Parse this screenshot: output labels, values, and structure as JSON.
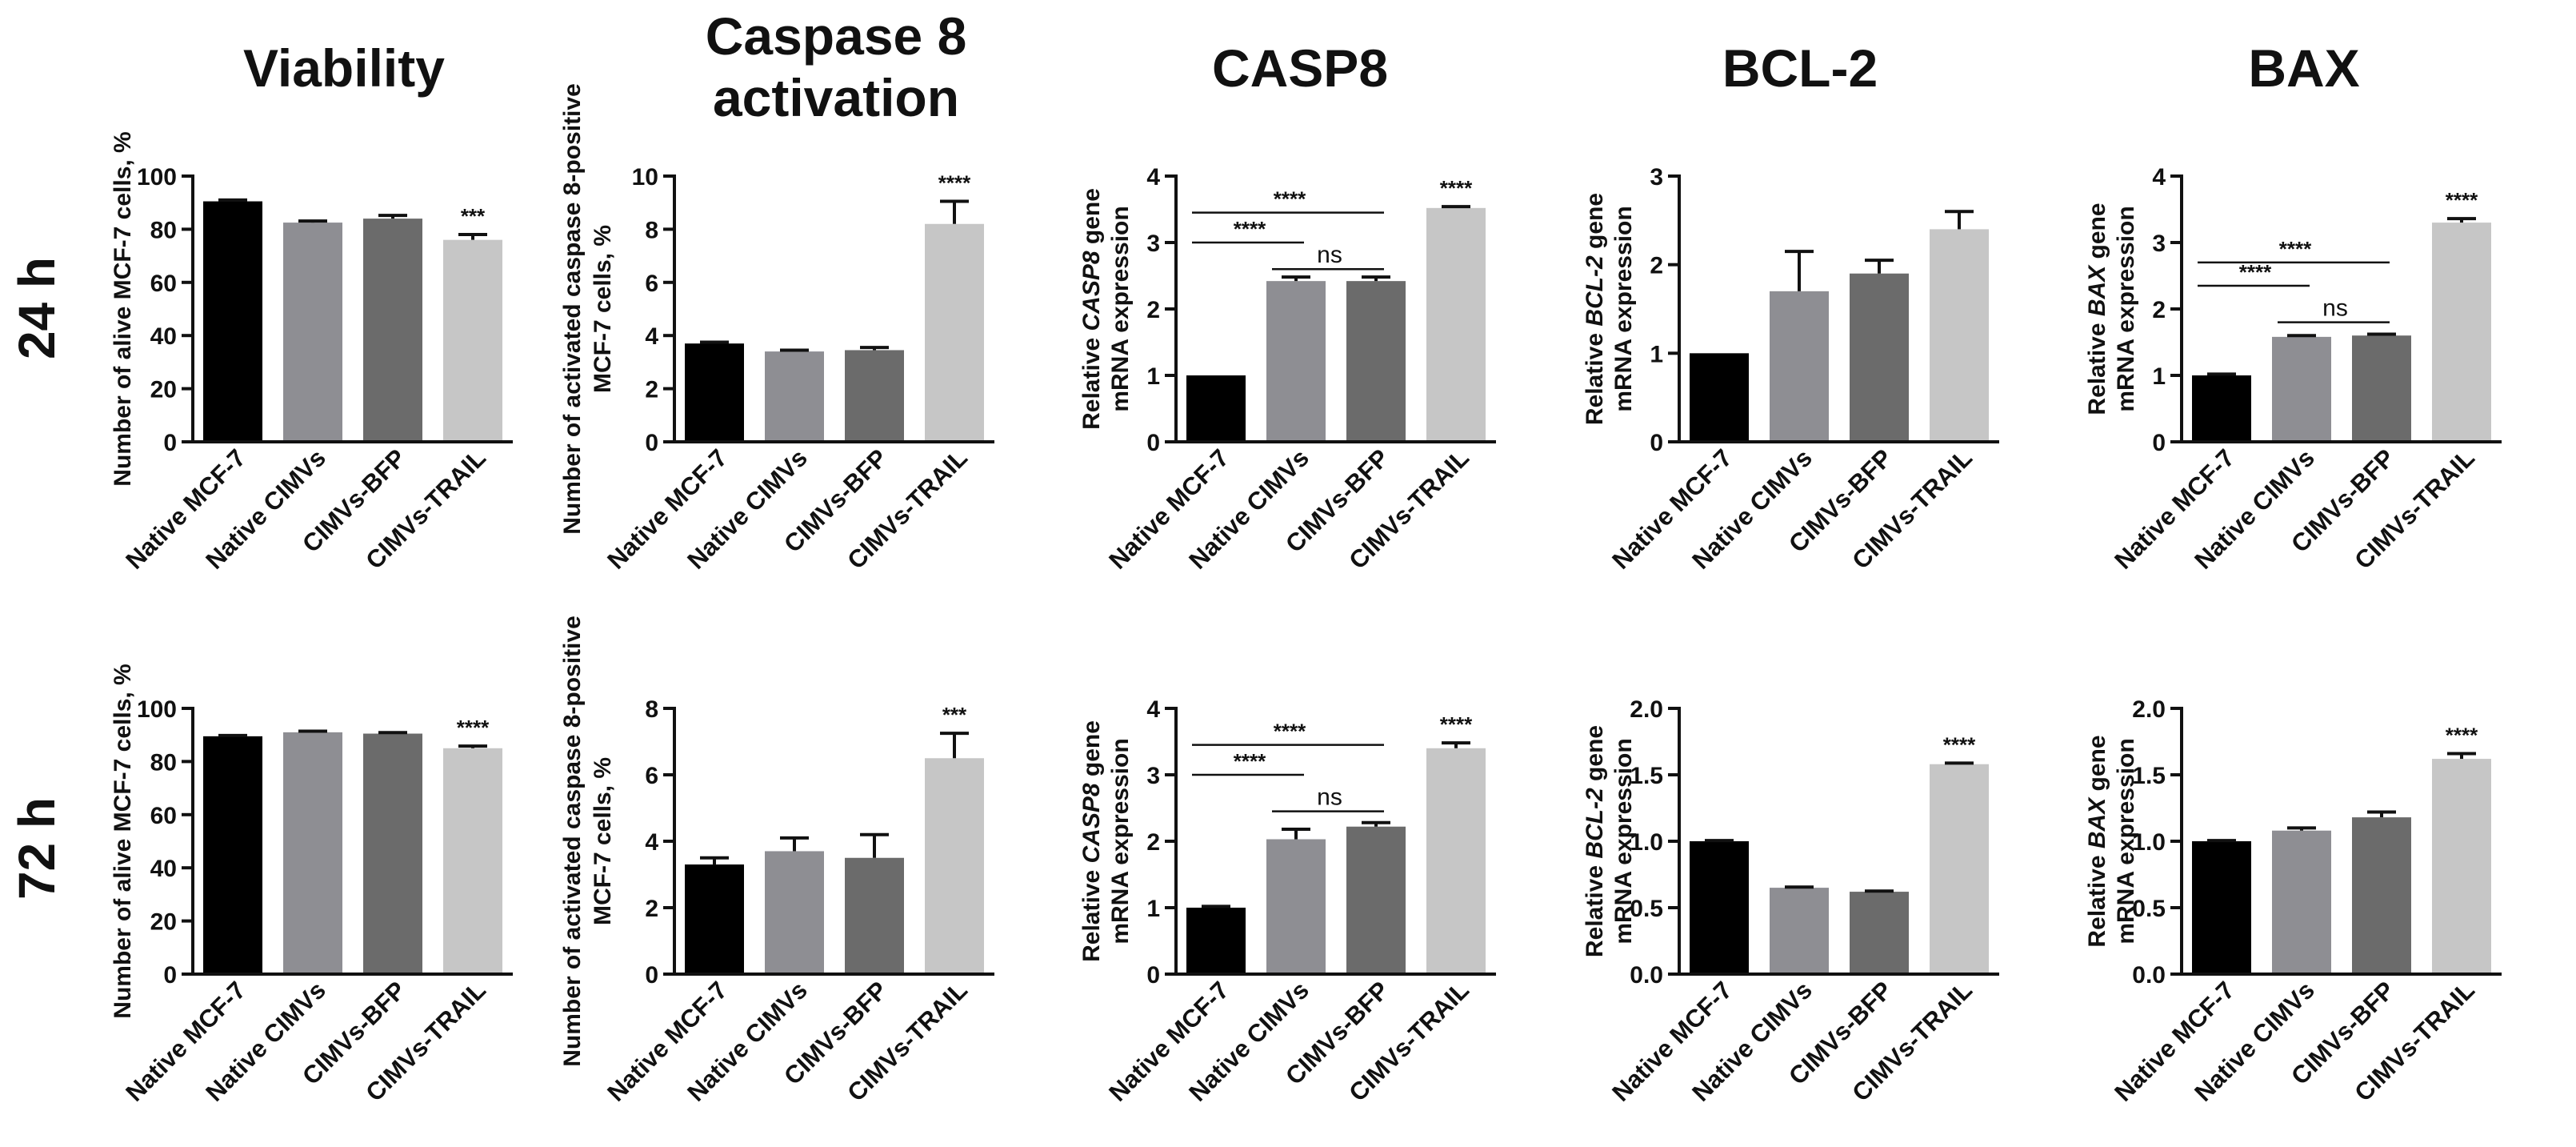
{
  "column_titles": {
    "viability": "Viability",
    "caspase_line1": "Caspase 8",
    "caspase_line2": "activation",
    "casp8": "CASP8",
    "bcl2": "BCL-2",
    "bax": "BAX"
  },
  "row_labels": {
    "row1": "24 h",
    "row2": "72 h"
  },
  "colors": {
    "native_mcf7": "#000000",
    "native_cimvs": "#8e8e93",
    "cimvs_bfp": "#6b6b6b",
    "cimvs_trail": "#c6c6c6"
  },
  "chart_data": [
    {
      "id": "viability_24h",
      "type": "bar",
      "row": "24 h",
      "column": "Viability",
      "categories": [
        "Native MCF-7",
        "Native CIMVs",
        "CIMVs-BFP",
        "CIMVs-TRAIL"
      ],
      "values": [
        90.5,
        82.5,
        84,
        76
      ],
      "errors": [
        0.5,
        0.6,
        1.2,
        2
      ],
      "ylim": [
        0,
        100
      ],
      "ticks": [
        "0",
        "20",
        "40",
        "60",
        "80",
        "100"
      ],
      "ylabel": "Number of alive MCF-7 cells, %",
      "significance": [
        {
          "category": "CIMVs-TRAIL",
          "label": "***"
        }
      ]
    },
    {
      "id": "caspase_24h",
      "type": "bar",
      "row": "24 h",
      "column": "Caspase 8 activation",
      "categories": [
        "Native MCF-7",
        "Native CIMVs",
        "CIMVs-BFP",
        "CIMVs-TRAIL"
      ],
      "values": [
        3.7,
        3.4,
        3.45,
        8.2
      ],
      "errors": [
        0.05,
        0.05,
        0.1,
        0.85
      ],
      "ylim": [
        0,
        10
      ],
      "ticks": [
        "0",
        "2",
        "4",
        "6",
        "8",
        "10"
      ],
      "ylabel_line1": "Number of activated caspase 8-positive",
      "ylabel_line2": "MCF-7 cells, %",
      "significance": [
        {
          "category": "CIMVs-TRAIL",
          "label": "****"
        }
      ]
    },
    {
      "id": "casp8_24h",
      "type": "bar",
      "row": "24 h",
      "column": "CASP8",
      "categories": [
        "Native MCF-7",
        "Native CIMVs",
        "CIMVs-BFP",
        "CIMVs-TRAIL"
      ],
      "values": [
        1,
        2.42,
        2.42,
        3.52
      ],
      "errors": [
        0,
        0.06,
        0.06,
        0.02
      ],
      "ylim": [
        0,
        4
      ],
      "ticks": [
        "0",
        "1",
        "2",
        "3",
        "4"
      ],
      "ylabel_pre": "Relative ",
      "ylabel_gene": "CASP8",
      "ylabel_post": " gene",
      "ylabel_line2": "mRNA expression",
      "significance": [
        {
          "category": "CIMVs-TRAIL",
          "label": "****"
        }
      ],
      "brackets": [
        {
          "from": "Native MCF-7",
          "to": "Native CIMVs",
          "label": "****",
          "y": 3.0
        },
        {
          "from": "Native MCF-7",
          "to": "CIMVs-BFP",
          "label": "****",
          "y": 3.45
        },
        {
          "from": "Native CIMVs",
          "to": "CIMVs-BFP",
          "label": "ns",
          "y": 2.6
        }
      ]
    },
    {
      "id": "bcl2_24h",
      "type": "bar",
      "row": "24 h",
      "column": "BCL-2",
      "categories": [
        "Native MCF-7",
        "Native CIMVs",
        "CIMVs-BFP",
        "CIMVs-TRAIL"
      ],
      "values": [
        1,
        1.7,
        1.9,
        2.4
      ],
      "errors": [
        0,
        0.45,
        0.15,
        0.2
      ],
      "ylim": [
        0,
        3
      ],
      "ticks": [
        "0",
        "1",
        "2",
        "3"
      ],
      "ylabel_pre": "Relative ",
      "ylabel_gene": "BCL-2",
      "ylabel_post": " gene",
      "ylabel_line2": "mRNA expression"
    },
    {
      "id": "bax_24h",
      "type": "bar",
      "row": "24 h",
      "column": "BAX",
      "categories": [
        "Native MCF-7",
        "Native CIMVs",
        "CIMVs-BFP",
        "CIMVs-TRAIL"
      ],
      "values": [
        1,
        1.58,
        1.6,
        3.3
      ],
      "errors": [
        0.02,
        0.02,
        0.02,
        0.06
      ],
      "ylim": [
        0,
        4
      ],
      "ticks": [
        "0",
        "1",
        "2",
        "3",
        "4"
      ],
      "ylabel_pre": "Relative ",
      "ylabel_gene": "BAX",
      "ylabel_post": " gene",
      "ylabel_line2": "mRNA expression",
      "significance": [
        {
          "category": "CIMVs-TRAIL",
          "label": "****"
        }
      ],
      "brackets": [
        {
          "from": "Native MCF-7",
          "to": "Native CIMVs",
          "label": "****",
          "y": 2.35
        },
        {
          "from": "Native MCF-7",
          "to": "CIMVs-BFP",
          "label": "****",
          "y": 2.7
        },
        {
          "from": "Native CIMVs",
          "to": "CIMVs-BFP",
          "label": "ns",
          "y": 1.8
        }
      ]
    },
    {
      "id": "viability_72h",
      "type": "bar",
      "row": "72 h",
      "column": "Viability",
      "categories": [
        "Native MCF-7",
        "Native CIMVs",
        "CIMVs-BFP",
        "CIMVs-TRAIL"
      ],
      "values": [
        89.5,
        91,
        90.5,
        85
      ],
      "errors": [
        0.3,
        0.4,
        0.4,
        0.8
      ],
      "ylim": [
        0,
        100
      ],
      "ticks": [
        "0",
        "20",
        "40",
        "60",
        "80",
        "100"
      ],
      "ylabel": "Number of alive MCF-7 cells, %",
      "significance": [
        {
          "category": "CIMVs-TRAIL",
          "label": "****"
        }
      ]
    },
    {
      "id": "caspase_72h",
      "type": "bar",
      "row": "72 h",
      "column": "Caspase 8 activation",
      "categories": [
        "Native MCF-7",
        "Native CIMVs",
        "CIMVs-BFP",
        "CIMVs-TRAIL"
      ],
      "values": [
        3.3,
        3.7,
        3.5,
        6.5
      ],
      "errors": [
        0.2,
        0.4,
        0.7,
        0.75
      ],
      "ylim": [
        0,
        8
      ],
      "ticks": [
        "0",
        "2",
        "4",
        "6",
        "8"
      ],
      "ylabel_line1": "Number of activated caspase 8-positive",
      "ylabel_line2": "MCF-7 cells, %",
      "significance": [
        {
          "category": "CIMVs-TRAIL",
          "label": "***"
        }
      ]
    },
    {
      "id": "casp8_72h",
      "type": "bar",
      "row": "72 h",
      "column": "CASP8",
      "categories": [
        "Native MCF-7",
        "Native CIMVs",
        "CIMVs-BFP",
        "CIMVs-TRAIL"
      ],
      "values": [
        1,
        2.03,
        2.22,
        3.4
      ],
      "errors": [
        0.02,
        0.15,
        0.06,
        0.08
      ],
      "ylim": [
        0,
        4
      ],
      "ticks": [
        "0",
        "1",
        "2",
        "3",
        "4"
      ],
      "ylabel_pre": "Relative ",
      "ylabel_gene": "CASP8",
      "ylabel_post": " gene",
      "ylabel_line2": "mRNA expression",
      "significance": [
        {
          "category": "CIMVs-TRAIL",
          "label": "****"
        }
      ],
      "brackets": [
        {
          "from": "Native MCF-7",
          "to": "Native CIMVs",
          "label": "****",
          "y": 3.0
        },
        {
          "from": "Native MCF-7",
          "to": "CIMVs-BFP",
          "label": "****",
          "y": 3.45
        },
        {
          "from": "Native CIMVs",
          "to": "CIMVs-BFP",
          "label": "ns",
          "y": 2.45
        }
      ]
    },
    {
      "id": "bcl2_72h",
      "type": "bar",
      "row": "72 h",
      "column": "BCL-2",
      "categories": [
        "Native MCF-7",
        "Native CIMVs",
        "CIMVs-BFP",
        "CIMVs-TRAIL"
      ],
      "values": [
        1,
        0.65,
        0.62,
        1.58
      ],
      "errors": [
        0.005,
        0.005,
        0.005,
        0.008
      ],
      "ylim": [
        0,
        2
      ],
      "ticks": [
        "0.0",
        "0.5",
        "1.0",
        "1.5",
        "2.0"
      ],
      "ylabel_pre": "Relative ",
      "ylabel_gene": "BCL-2",
      "ylabel_post": " gene",
      "ylabel_line2": "mRNA expression",
      "significance": [
        {
          "category": "CIMVs-TRAIL",
          "label": "****"
        }
      ]
    },
    {
      "id": "bax_72h",
      "type": "bar",
      "row": "72 h",
      "column": "BAX",
      "categories": [
        "Native MCF-7",
        "Native CIMVs",
        "CIMVs-BFP",
        "CIMVs-TRAIL"
      ],
      "values": [
        1,
        1.08,
        1.18,
        1.62
      ],
      "errors": [
        0.005,
        0.02,
        0.04,
        0.04
      ],
      "ylim": [
        0,
        2
      ],
      "ticks": [
        "0.0",
        "0.5",
        "1.0",
        "1.5",
        "2.0"
      ],
      "ylabel_pre": "Relative ",
      "ylabel_gene": "BAX",
      "ylabel_post": " gene",
      "ylabel_line2": "mRNA expression",
      "significance": [
        {
          "category": "CIMVs-TRAIL",
          "label": "****"
        }
      ]
    }
  ]
}
